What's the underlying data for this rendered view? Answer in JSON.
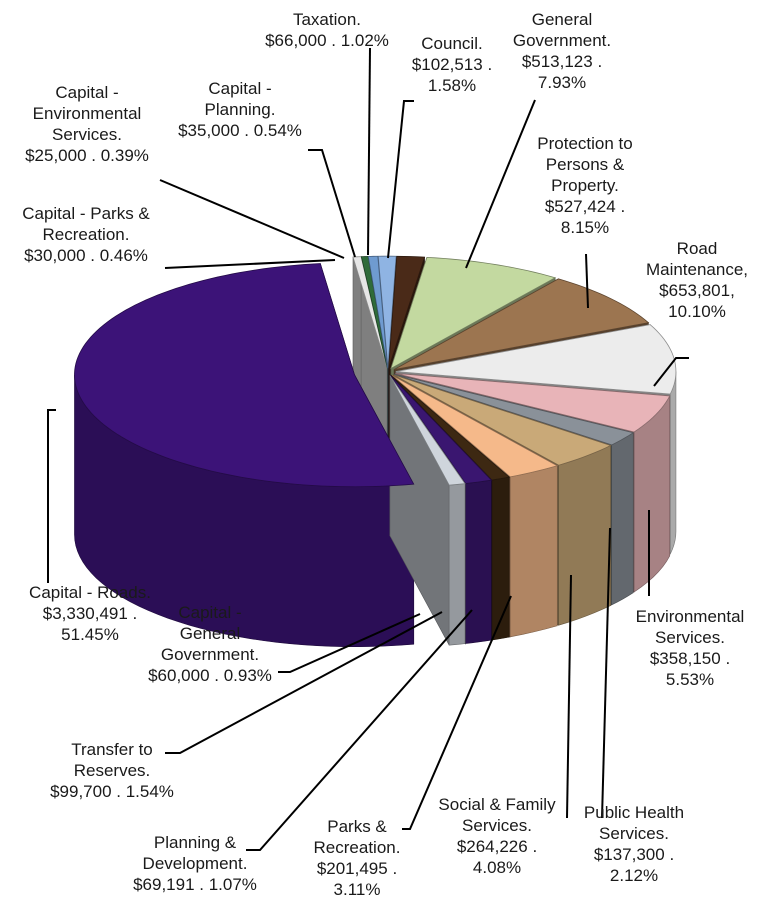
{
  "chart_data": {
    "type": "pie",
    "style": "3d-exploded",
    "title": "",
    "slices": [
      {
        "label": "Taxation.",
        "value": 66000,
        "value_text": "$66,000",
        "percent": 1.02,
        "percent_text": "1.02%",
        "color": "#8fb4e3"
      },
      {
        "label": "Council.",
        "value": 102513,
        "value_text": "$102,513",
        "percent": 1.58,
        "percent_text": "1.58%",
        "color": "#4a2a18"
      },
      {
        "label": "General Government.",
        "value": 513123,
        "value_text": "$513,123",
        "percent": 7.93,
        "percent_text": "7.93%",
        "color": "#c3d9a0"
      },
      {
        "label": "Protection to Persons & Property.",
        "value": 527424,
        "value_text": "$527,424",
        "percent": 8.15,
        "percent_text": "8.15%",
        "color": "#9c7550"
      },
      {
        "label": "Road Maintenance,",
        "value": 653801,
        "value_text": "$653,801,",
        "percent": 10.1,
        "percent_text": "10.10%",
        "color": "#ececec"
      },
      {
        "label": "Environmental Services.",
        "value": 358150,
        "value_text": "$358,150",
        "percent": 5.53,
        "percent_text": "5.53%",
        "color": "#e8b4b8"
      },
      {
        "label": "Public Health Services.",
        "value": 137300,
        "value_text": "$137,300",
        "percent": 2.12,
        "percent_text": "2.12%",
        "color": "#8a9199"
      },
      {
        "label": "Social & Family Services.",
        "value": 264226,
        "value_text": "$264,226",
        "percent": 4.08,
        "percent_text": "4.08%",
        "color": "#c9a978"
      },
      {
        "label": "Parks & Recreation.",
        "value": 201495,
        "value_text": "$201,495",
        "percent": 3.11,
        "percent_text": "3.11%",
        "color": "#f5b98a"
      },
      {
        "label": "Planning & Development.",
        "value": 69191,
        "value_text": "$69,191",
        "percent": 1.07,
        "percent_text": "1.07%",
        "color": "#3d2812"
      },
      {
        "label": "Transfer to Reserves.",
        "value": 99700,
        "value_text": "$99,700",
        "percent": 1.54,
        "percent_text": "1.54%",
        "color": "#3a1670"
      },
      {
        "label": "Capital - General Government.",
        "value": 60000,
        "value_text": "$60,000",
        "percent": 0.93,
        "percent_text": "0.93%",
        "color": "#cfd5dc"
      },
      {
        "label": "Capital - Roads.",
        "value": 3330491,
        "value_text": "$3,330,491",
        "percent": 51.45,
        "percent_text": "51.45%",
        "color": "#3c1378"
      },
      {
        "label": "Capital - Parks & Recreation.",
        "value": 30000,
        "value_text": "$30,000",
        "percent": 0.46,
        "percent_text": "0.46%",
        "color": "#e6e6e6"
      },
      {
        "label": "Capital - Environmental Services.",
        "value": 25000,
        "value_text": "$25,000",
        "percent": 0.39,
        "percent_text": "0.39%",
        "color": "#2f6b3a"
      },
      {
        "label": "Capital - Planning.",
        "value": 35000,
        "value_text": "$35,000",
        "percent": 0.54,
        "percent_text": "0.54%",
        "color": "#6f9bd0"
      }
    ],
    "label_lines": [
      {
        "slice": "Taxation.",
        "lines": [
          "Taxation.",
          "$66,000 . 1.02%"
        ]
      },
      {
        "slice": "Council.",
        "lines": [
          "Council.",
          "$102,513 .",
          "1.58%"
        ]
      },
      {
        "slice": "General Government.",
        "lines": [
          "General",
          "Government.",
          "$513,123 .",
          "7.93%"
        ]
      },
      {
        "slice": "Protection to Persons & Property.",
        "lines": [
          "Protection to",
          "Persons &",
          "Property.",
          "$527,424 .",
          "8.15%"
        ]
      },
      {
        "slice": "Road Maintenance,",
        "lines": [
          "Road",
          "Maintenance,",
          "$653,801,",
          "10.10%"
        ]
      },
      {
        "slice": "Environmental Services.",
        "lines": [
          "Environmental",
          "Services.",
          "$358,150 .",
          "5.53%"
        ]
      },
      {
        "slice": "Public Health Services.",
        "lines": [
          "Public Health",
          "Services.",
          "$137,300 .",
          "2.12%"
        ]
      },
      {
        "slice": "Social & Family Services.",
        "lines": [
          "Social & Family",
          "Services.",
          "$264,226 .",
          "4.08%"
        ]
      },
      {
        "slice": "Parks & Recreation.",
        "lines": [
          "Parks &",
          "Recreation.",
          "$201,495 .",
          "3.11%"
        ]
      },
      {
        "slice": "Planning & Development.",
        "lines": [
          "Planning &",
          "Development.",
          "$69,191 . 1.07%"
        ]
      },
      {
        "slice": "Transfer to Reserves.",
        "lines": [
          "Transfer to",
          "Reserves.",
          "$99,700 . 1.54%"
        ]
      },
      {
        "slice": "Capital - General Government.",
        "lines": [
          "Capital -",
          "General",
          "Government.",
          "$60,000 . 0.93%"
        ]
      },
      {
        "slice": "Capital - Roads.",
        "lines": [
          "Capital - Roads.",
          "$3,330,491 .",
          "51.45%"
        ]
      },
      {
        "slice": "Capital - Parks & Recreation.",
        "lines": [
          "Capital - Parks &",
          "Recreation.",
          "$30,000 . 0.46%"
        ]
      },
      {
        "slice": "Capital - Environmental Services.",
        "lines": [
          "Capital -",
          "Environmental",
          "Services.",
          "$25,000 . 0.39%"
        ]
      },
      {
        "slice": "Capital - Planning.",
        "lines": [
          "Capital -",
          "Planning.",
          "$35,000 . 0.54%"
        ]
      }
    ]
  }
}
